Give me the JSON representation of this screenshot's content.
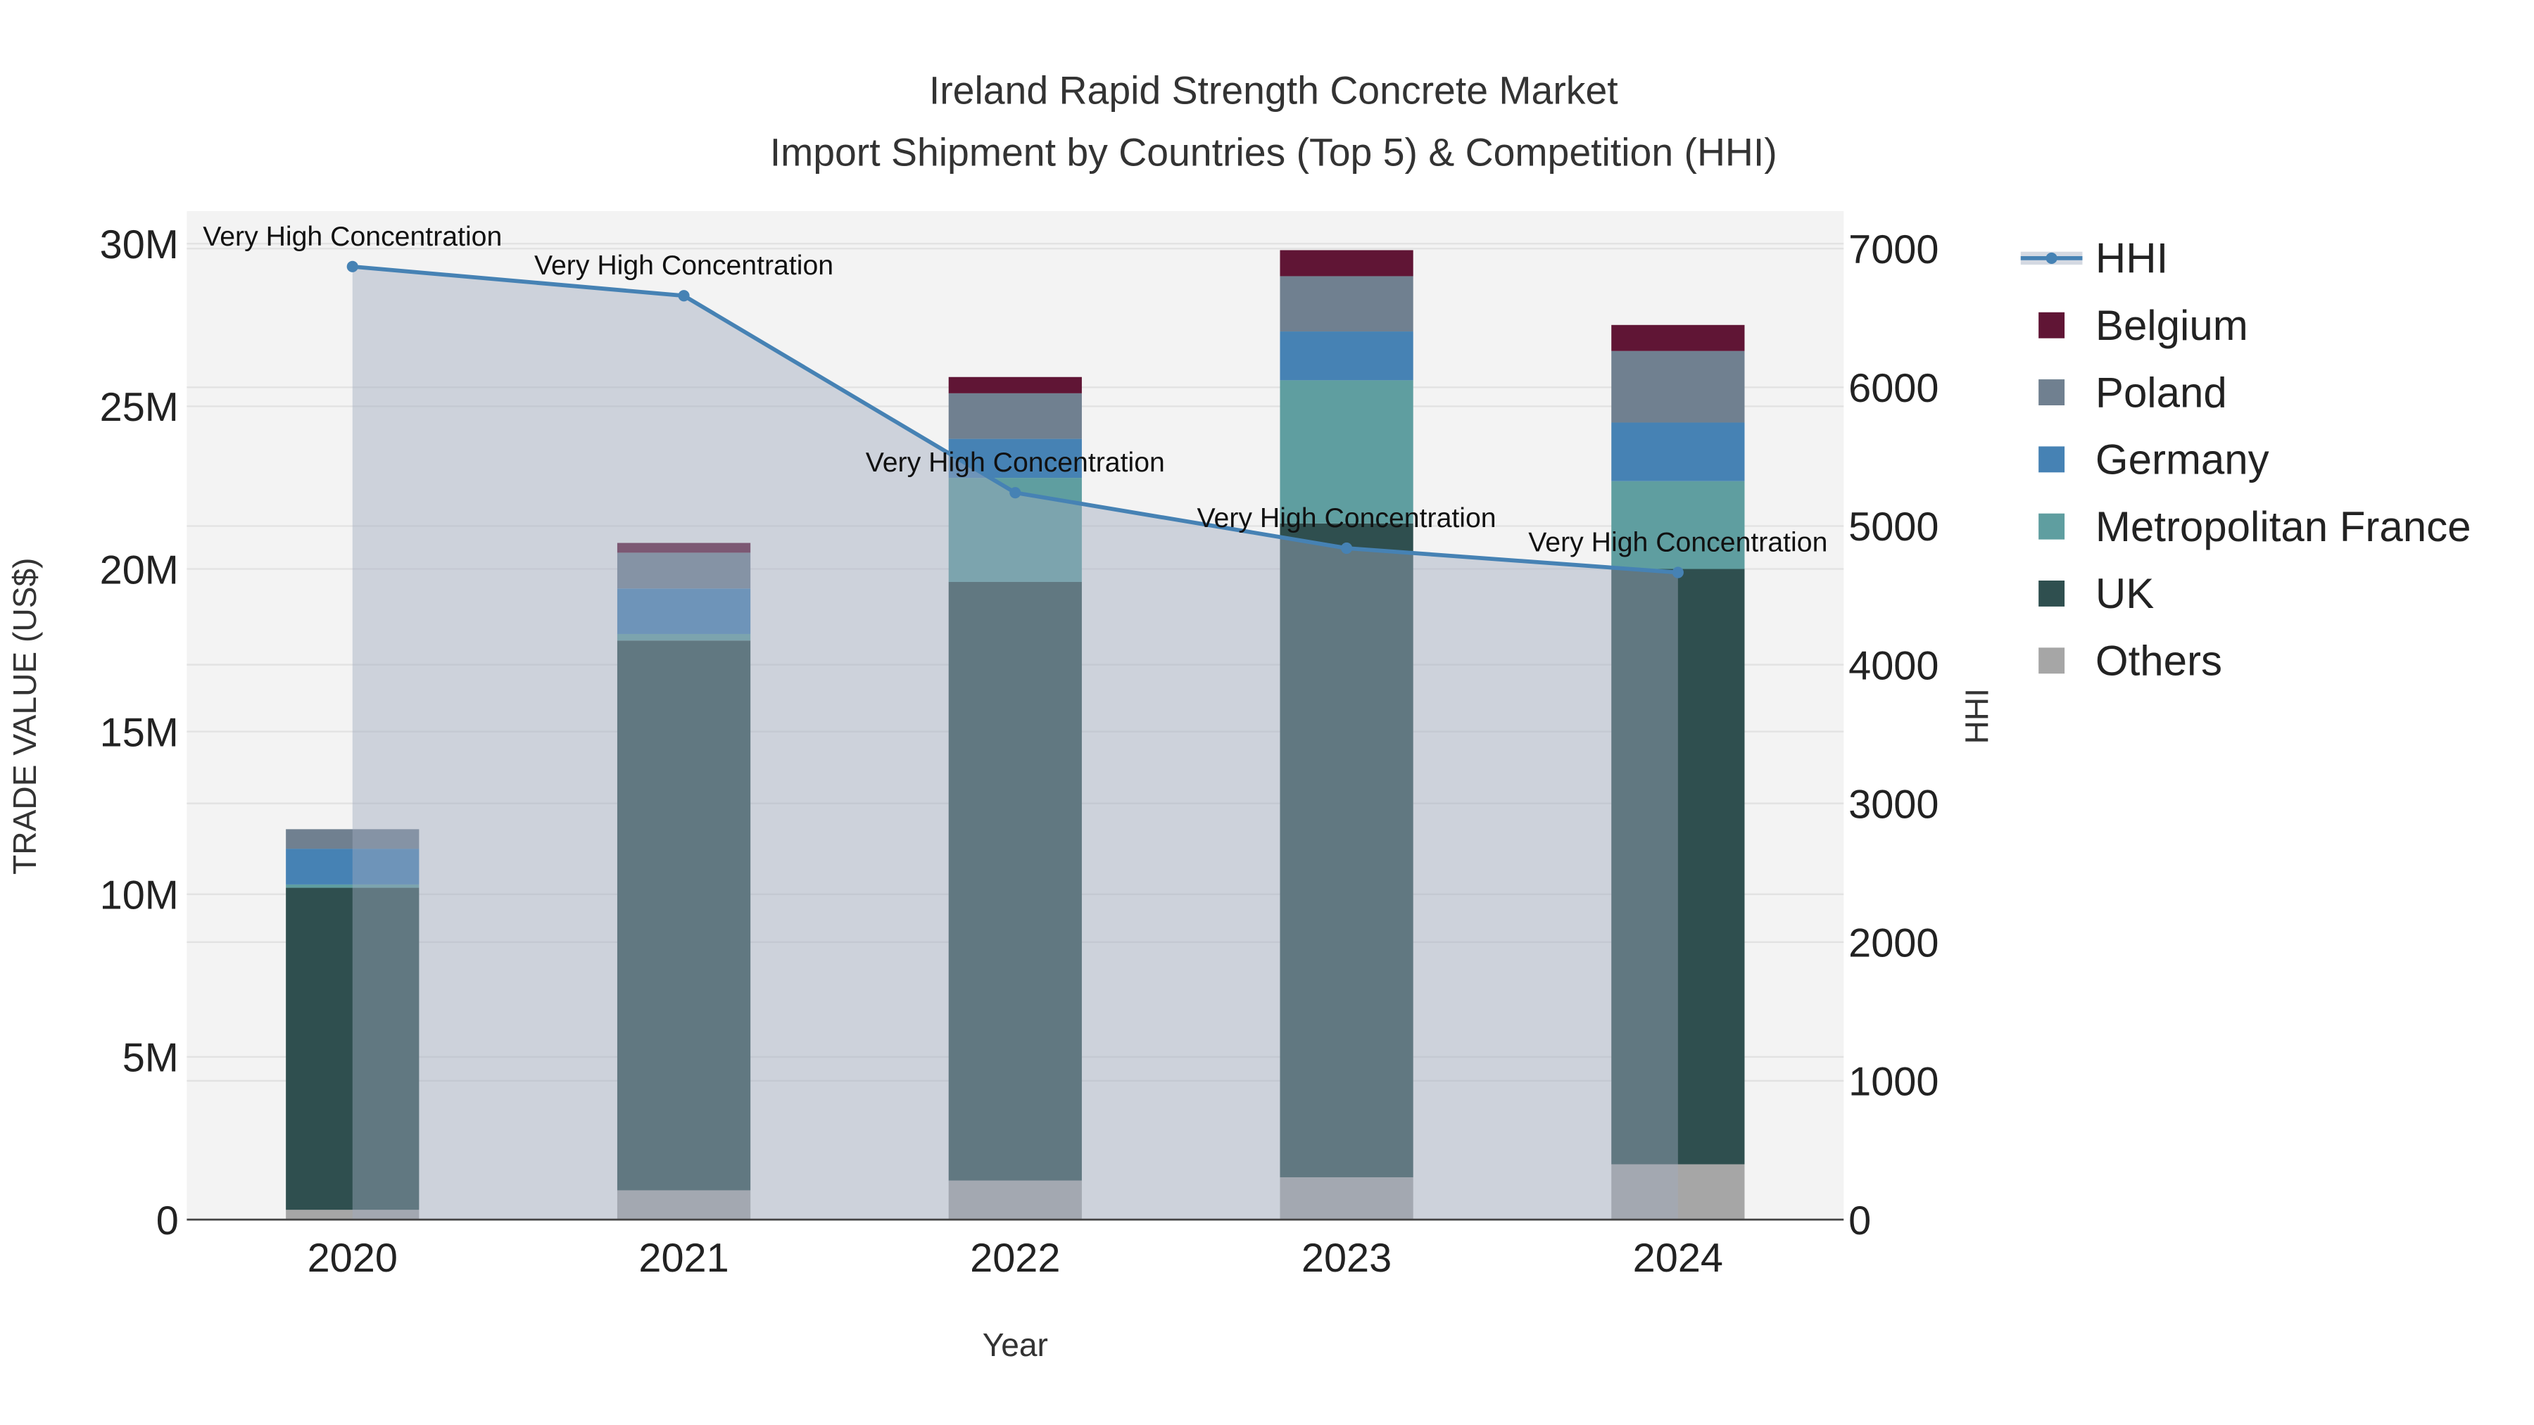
{
  "chart_data": {
    "type": "bar",
    "title": "Ireland Rapid Strength Concrete Market",
    "subtitle": "Import Shipment by Countries (Top 5) & Competition (HHI)",
    "xlabel": "Year",
    "ylabel": "TRADE VALUE (US$)",
    "y2label": "HHI",
    "categories": [
      "2020",
      "2021",
      "2022",
      "2023",
      "2024"
    ],
    "ylim": [
      0,
      31000000
    ],
    "y2lim": [
      0,
      7270
    ],
    "yticks": [
      {
        "v": 0,
        "label": "0"
      },
      {
        "v": 5000000,
        "label": "5M"
      },
      {
        "v": 10000000,
        "label": "10M"
      },
      {
        "v": 15000000,
        "label": "15M"
      },
      {
        "v": 20000000,
        "label": "20M"
      },
      {
        "v": 25000000,
        "label": "25M"
      },
      {
        "v": 30000000,
        "label": "30M"
      }
    ],
    "y2ticks": [
      {
        "v": 0,
        "label": "0"
      },
      {
        "v": 1000,
        "label": "1000"
      },
      {
        "v": 2000,
        "label": "2000"
      },
      {
        "v": 3000,
        "label": "3000"
      },
      {
        "v": 4000,
        "label": "4000"
      },
      {
        "v": 5000,
        "label": "5000"
      },
      {
        "v": 6000,
        "label": "6000"
      },
      {
        "v": 7000,
        "label": "7000"
      }
    ],
    "series": [
      {
        "name": "Others",
        "color": "#a6a6a6",
        "values": [
          300000,
          900000,
          1200000,
          1300000,
          1700000
        ]
      },
      {
        "name": "UK",
        "color": "#2f4f4f",
        "values": [
          9900000,
          16900000,
          18400000,
          20100000,
          18300000
        ]
      },
      {
        "name": "Metropolitan France",
        "color": "#5f9ea0",
        "values": [
          100000,
          200000,
          3200000,
          4400000,
          2700000
        ]
      },
      {
        "name": "Germany",
        "color": "#4682b4",
        "values": [
          1100000,
          1400000,
          1200000,
          1500000,
          1800000
        ]
      },
      {
        "name": "Poland",
        "color": "#708090",
        "values": [
          600000,
          1100000,
          1400000,
          1700000,
          2200000
        ]
      },
      {
        "name": "Belgium",
        "color": "#601535",
        "values": [
          0,
          300000,
          500000,
          800000,
          800000
        ]
      }
    ],
    "hhi": {
      "name": "HHI",
      "color": "#4682b4",
      "values": [
        6870,
        6660,
        5240,
        4840,
        4665
      ],
      "annotations": [
        "Very High Concentration",
        "Very High Concentration",
        "Very High Concentration",
        "Very High Concentration",
        "Very High Concentration"
      ]
    },
    "legend": {
      "placement": "right",
      "order": [
        "HHI",
        "Belgium",
        "Poland",
        "Germany",
        "Metropolitan France",
        "UK",
        "Others"
      ]
    },
    "grid": true
  }
}
